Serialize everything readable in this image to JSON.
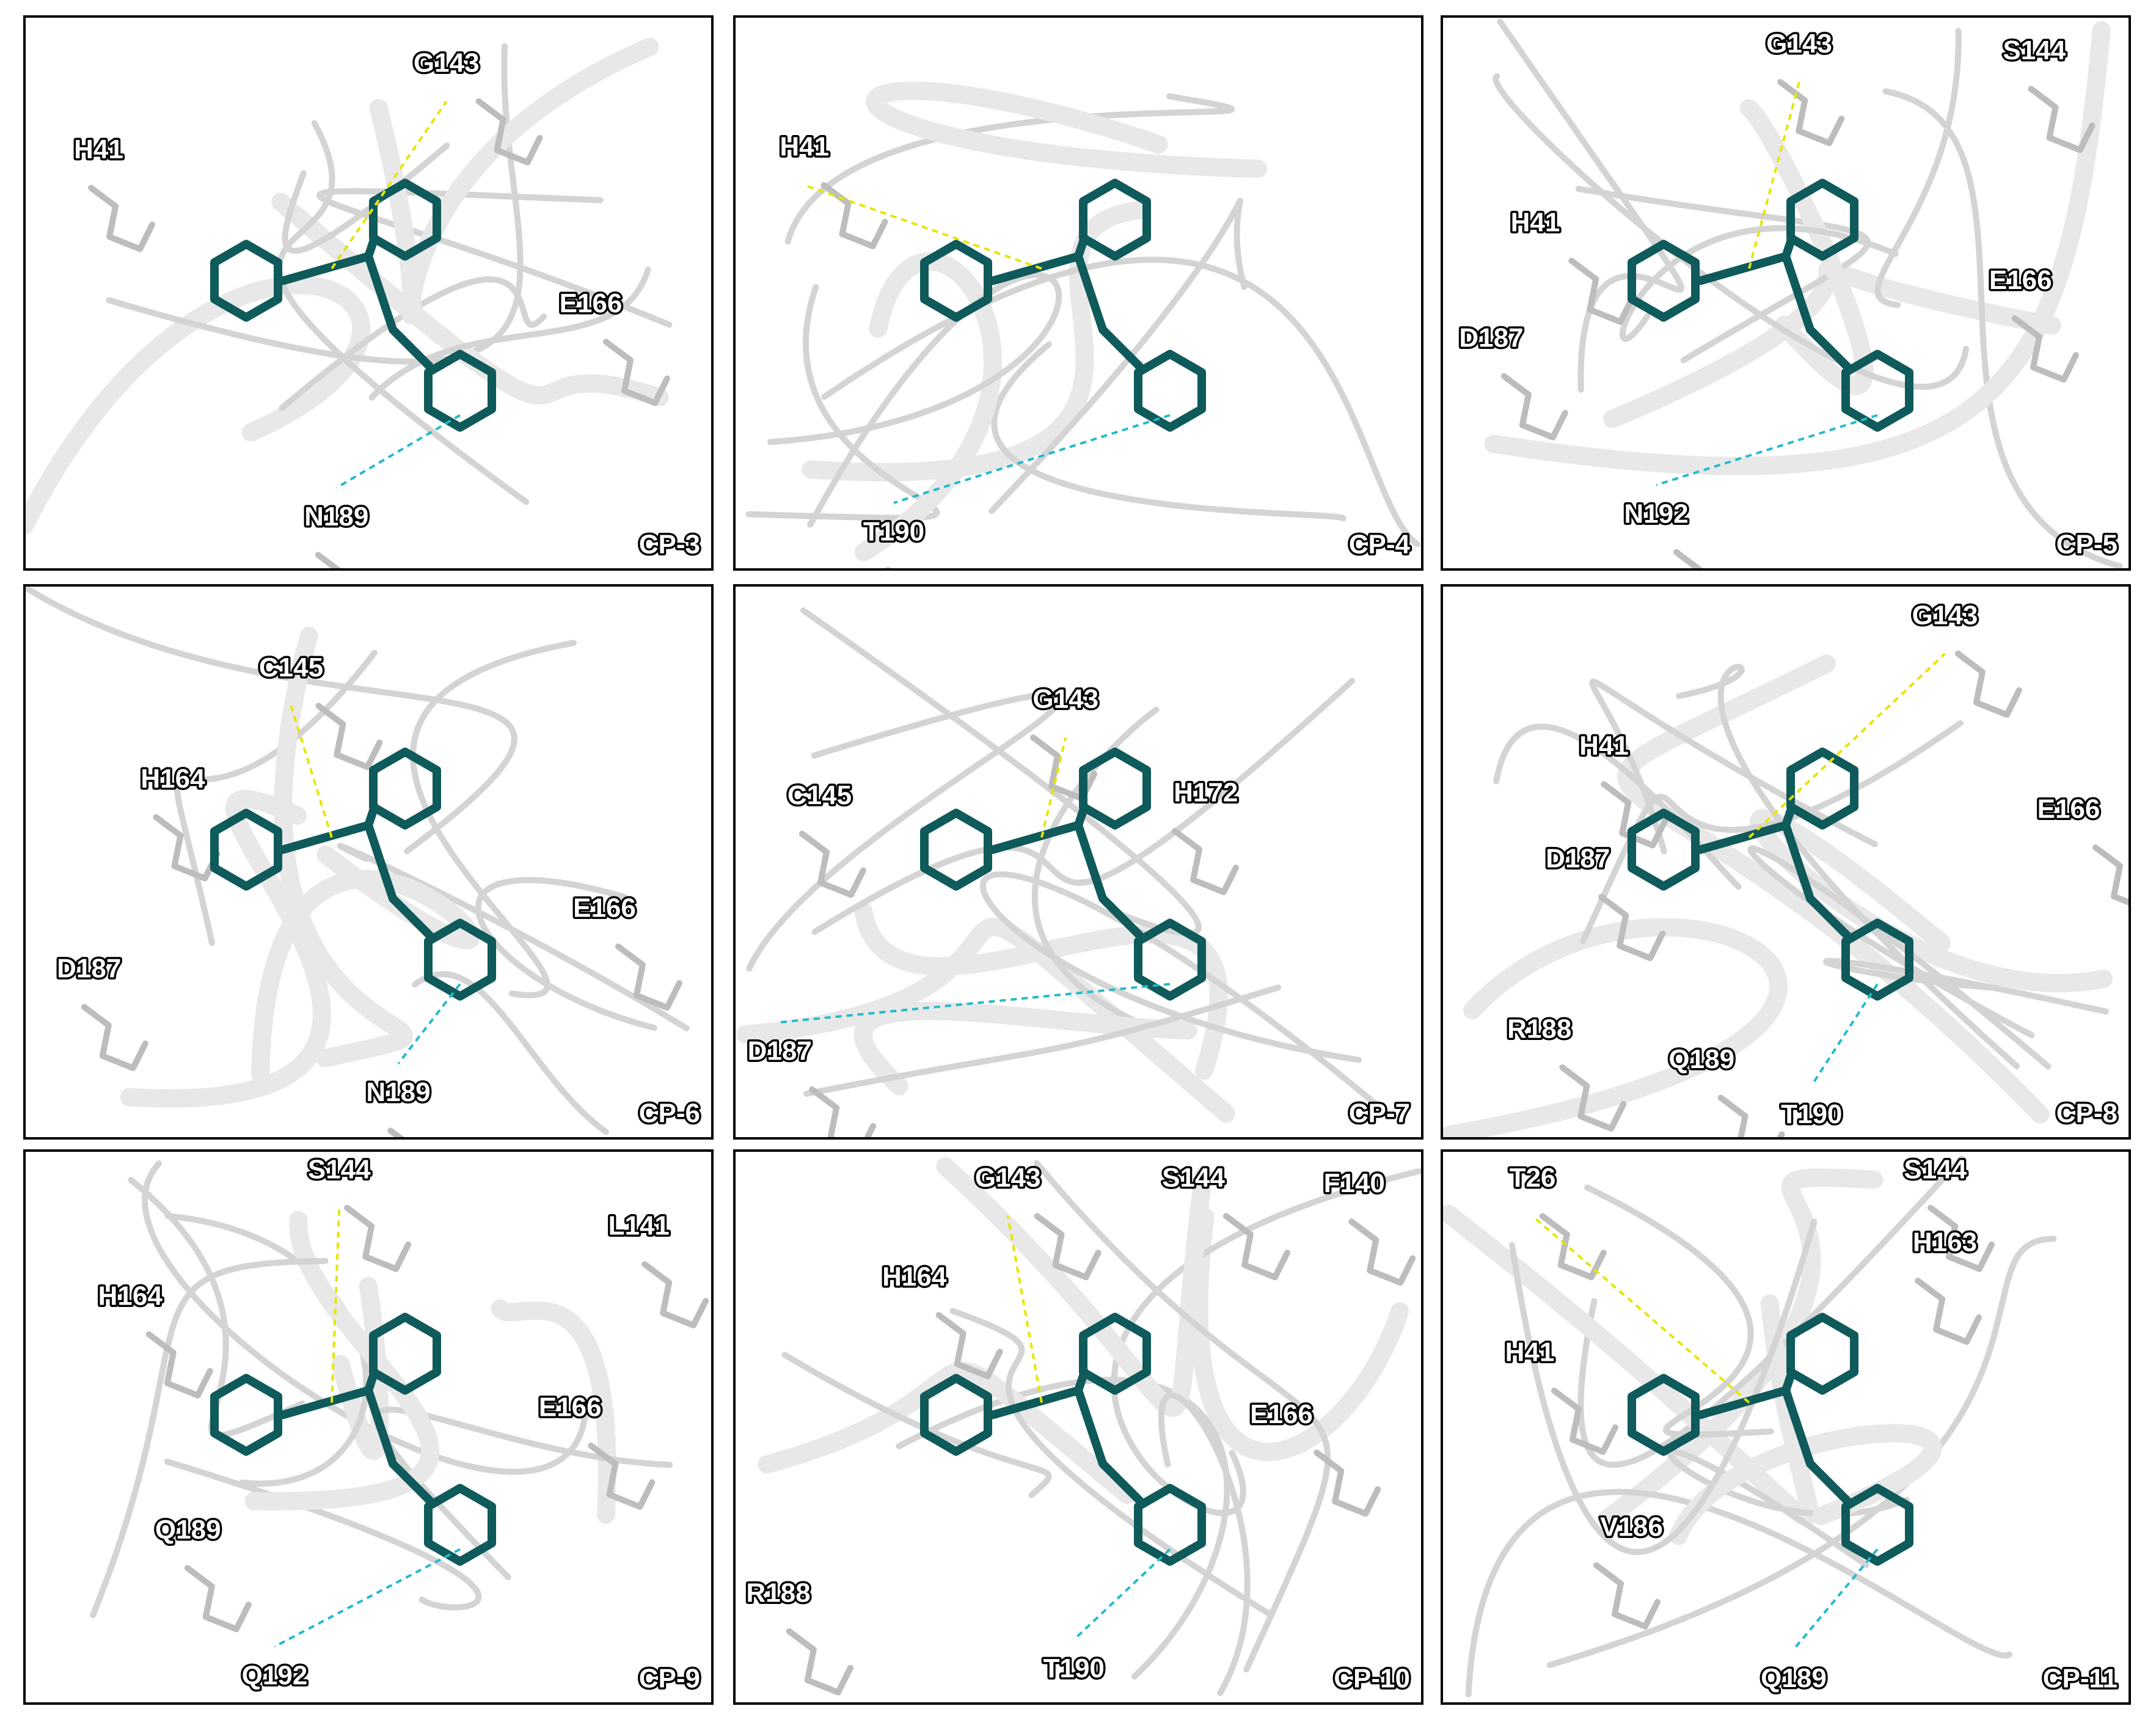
{
  "panels": [
    {
      "label": "CP-3",
      "residues": [
        "G143",
        "H41",
        "E166",
        "N189"
      ]
    },
    {
      "label": "CP-4",
      "residues": [
        "H41",
        "T190"
      ]
    },
    {
      "label": "CP-5",
      "residues": [
        "G143",
        "S144",
        "H41",
        "E166",
        "D187",
        "N192"
      ]
    },
    {
      "label": "CP-6",
      "residues": [
        "C145",
        "H164",
        "E166",
        "D187",
        "N189"
      ]
    },
    {
      "label": "CP-7",
      "residues": [
        "G143",
        "H172",
        "C145",
        "D187"
      ]
    },
    {
      "label": "CP-8",
      "residues": [
        "G143",
        "H41",
        "E166",
        "D187",
        "R188",
        "Q189",
        "T190"
      ]
    },
    {
      "label": "CP-9",
      "residues": [
        "S144",
        "L141",
        "H164",
        "E166",
        "Q189",
        "Q192"
      ]
    },
    {
      "label": "CP-10",
      "residues": [
        "G143",
        "S144",
        "F140",
        "H164",
        "E166",
        "R188",
        "T190"
      ]
    },
    {
      "label": "CP-11",
      "residues": [
        "T26",
        "S144",
        "H163",
        "H41",
        "V186",
        "Q189"
      ]
    }
  ]
}
